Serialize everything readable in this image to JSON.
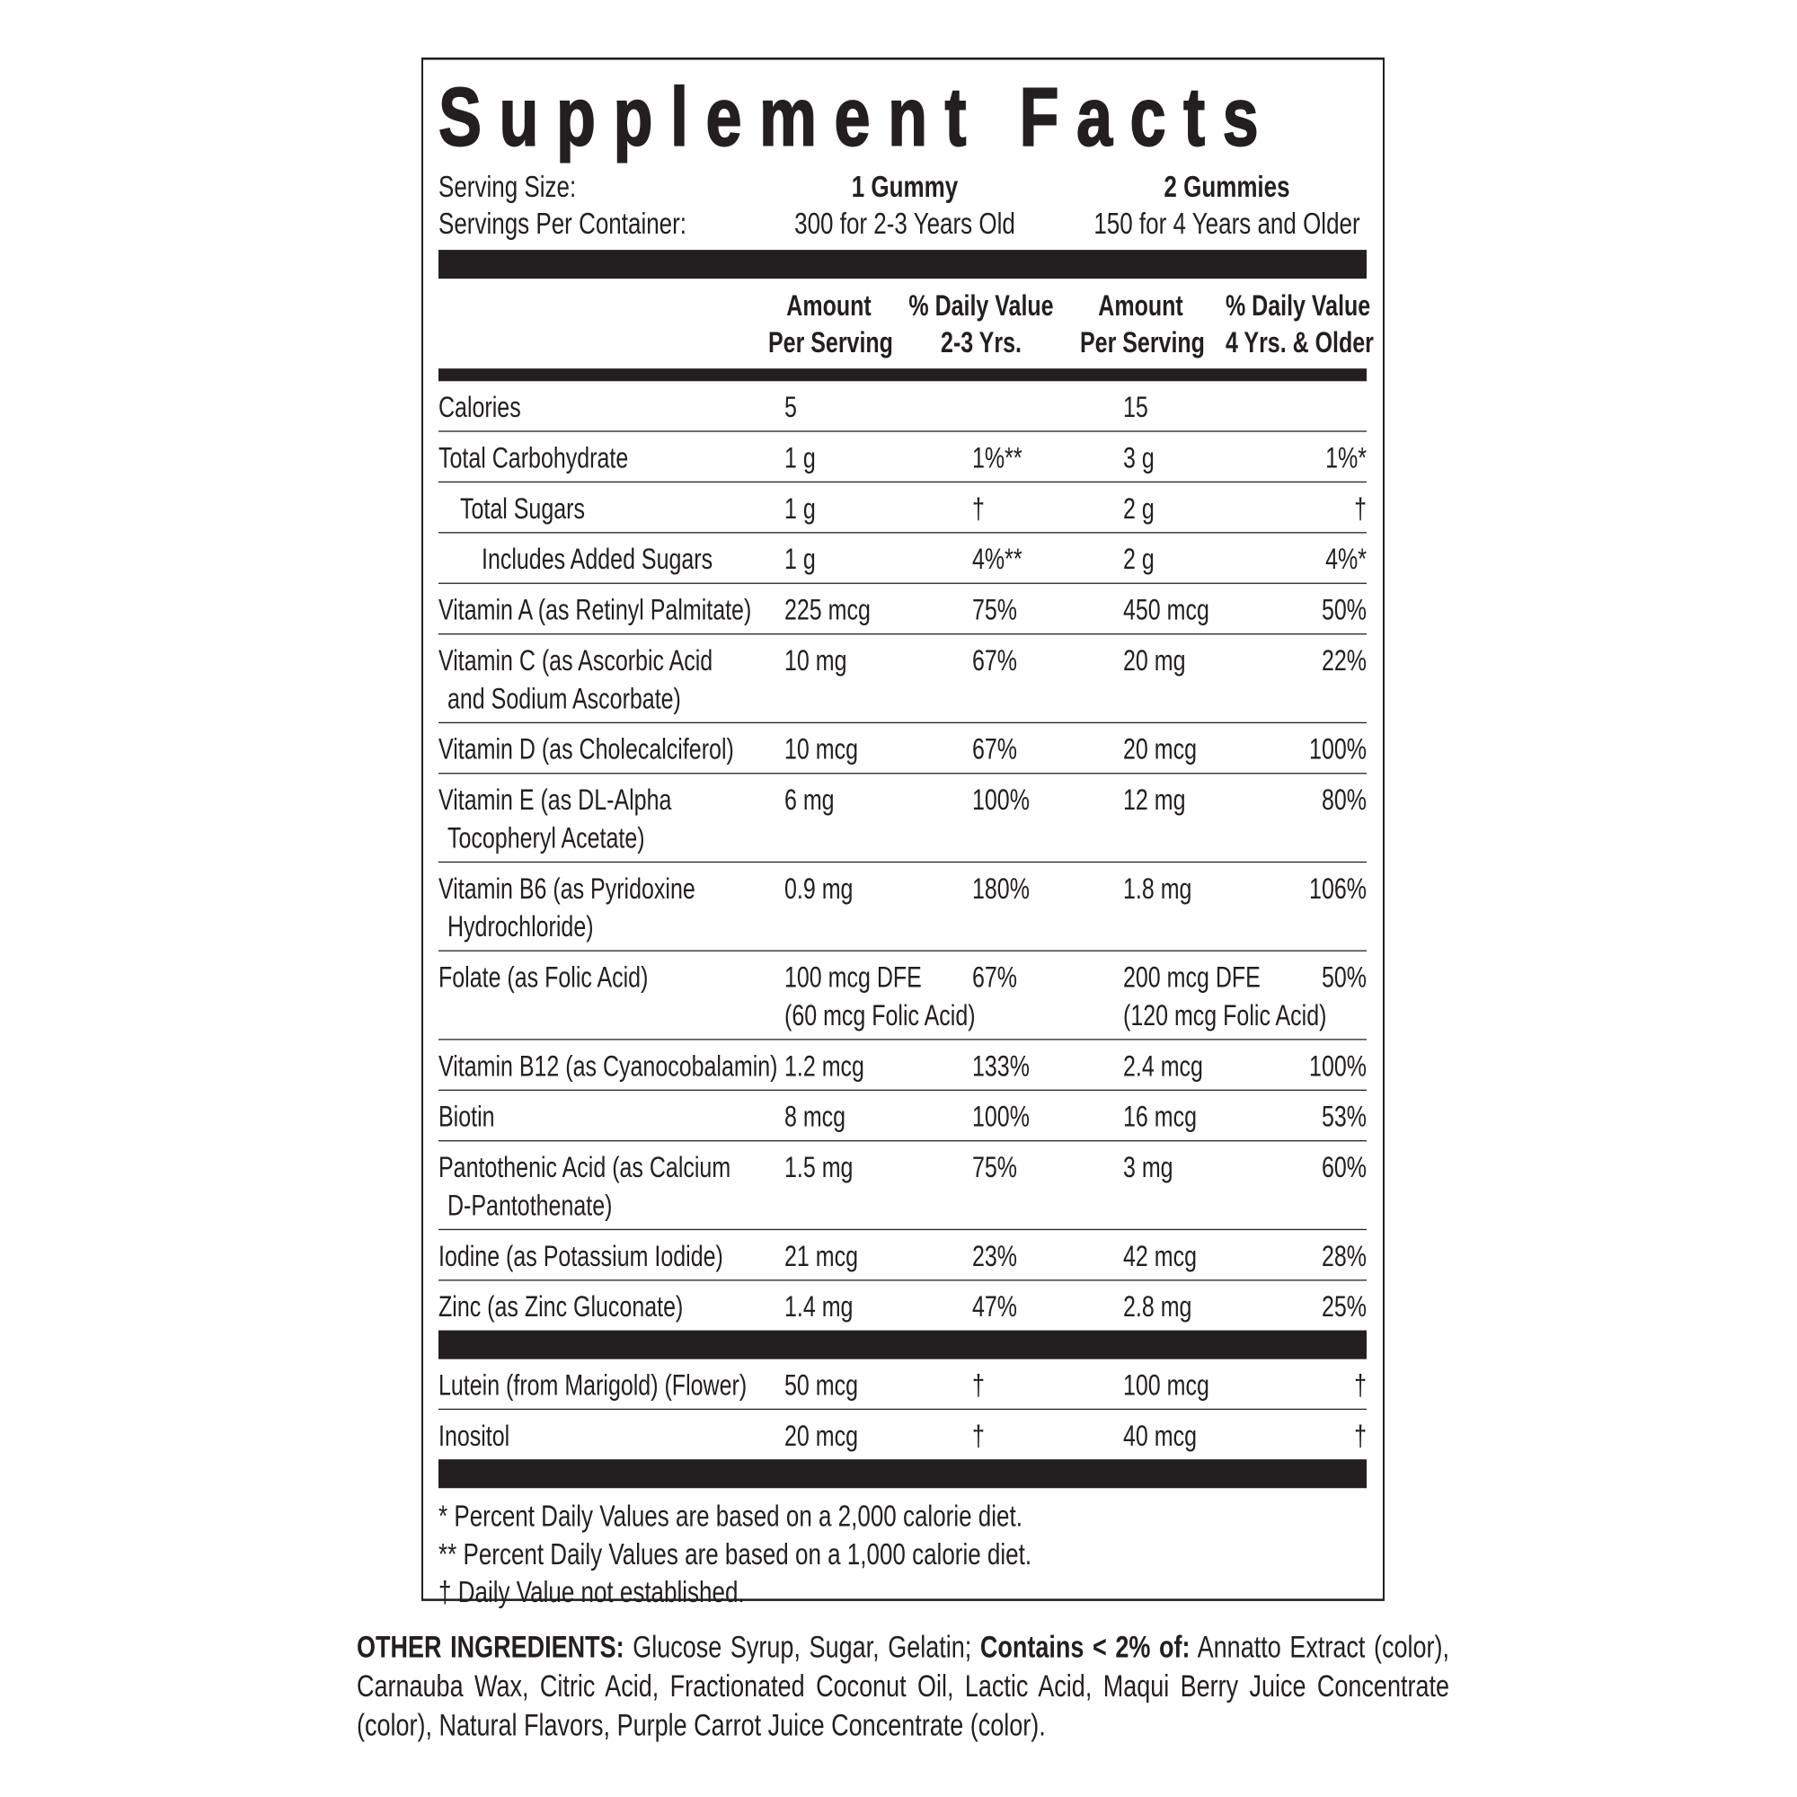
{
  "title": "Supplement Facts",
  "serving": {
    "size_label": "Serving Size:",
    "servings_label": "Servings Per Container:",
    "columns": [
      {
        "size": "1 Gummy",
        "servings": "300 for 2-3 Years Old"
      },
      {
        "size": "2 Gummies",
        "servings": "150 for 4 Years and Older"
      }
    ]
  },
  "headers": [
    "Amount\nPer Serving",
    "% Daily Value\n2-3 Yrs.",
    "Amount\nPer Serving",
    "% Daily Value\n4 Yrs. & Older"
  ],
  "sections": [
    {
      "rows": [
        {
          "name": "Calories",
          "amount_1": "5",
          "amount_2": "15"
        },
        {
          "name": "Total Carbohydrate",
          "amount_1": "1 g",
          "dv_1": "1%**",
          "amount_2": "3 g",
          "dv_2": "1%*",
          "sub": [
            {
              "name": "Total Sugars",
              "amount_1": "1 g",
              "dv_1": "†",
              "amount_2": "2 g",
              "dv_2": "†",
              "sub": [
                {
                  "name": "Includes Added Sugars",
                  "amount_1": "1 g",
                  "dv_1": "4%**",
                  "amount_2": "2 g",
                  "dv_2": "4%*"
                }
              ]
            }
          ]
        },
        {
          "name": "Vitamin A (as Retinyl Palmitate)",
          "amount_1": "225 mcg",
          "dv_1": "75%",
          "amount_2": "450 mcg",
          "dv_2": "50%"
        },
        {
          "name": "Vitamin C (as Ascorbic Acid\nand Sodium Ascorbate)",
          "amount_1": "10 mg",
          "dv_1": "67%",
          "amount_2": "20 mg",
          "dv_2": "22%"
        },
        {
          "name": "Vitamin D (as Cholecalciferol)",
          "amount_1": "10 mcg",
          "dv_1": "67%",
          "amount_2": "20 mcg",
          "dv_2": "100%"
        },
        {
          "name": "Vitamin E (as DL-Alpha\nTocopheryl Acetate)",
          "amount_1": "6 mg",
          "dv_1": "100%",
          "amount_2": "12 mg",
          "dv_2": "80%"
        },
        {
          "name": "Vitamin B6 (as Pyridoxine\nHydrochloride)",
          "amount_1": "0.9 mg",
          "dv_1": "180%",
          "amount_2": "1.8 mg",
          "dv_2": "106%"
        },
        {
          "name": "Folate (as Folic Acid)",
          "amount_1": "100 mcg DFE\n(60 mcg Folic Acid)",
          "dv_1": "67%",
          "amount_2": "200 mcg DFE\n(120 mcg Folic Acid)",
          "dv_2": "50%"
        },
        {
          "name": "Vitamin B12 (as Cyanocobalamin)",
          "amount_1": "1.2 mcg",
          "dv_1": "133%",
          "amount_2": "2.4 mcg",
          "dv_2": "100%"
        },
        {
          "name": "Biotin",
          "amount_1": "8 mcg",
          "dv_1": "100%",
          "amount_2": "16 mcg",
          "dv_2": "53%"
        },
        {
          "name": "Pantothenic Acid (as Calcium\nD-Pantothenate)",
          "amount_1": "1.5 mg",
          "dv_1": "75%",
          "amount_2": "3 mg",
          "dv_2": "60%"
        },
        {
          "name": "Iodine (as Potassium Iodide)",
          "amount_1": "21 mcg",
          "dv_1": "23%",
          "amount_2": "42 mcg",
          "dv_2": "28%"
        },
        {
          "name": "Zinc (as Zinc Gluconate)",
          "amount_1": "1.4 mg",
          "dv_1": "47%",
          "amount_2": "2.8 mg",
          "dv_2": "25%"
        }
      ]
    },
    {
      "rows": [
        {
          "name": "Lutein (from Marigold) (Flower)",
          "amount_1": "50 mcg",
          "dv_1": "†",
          "amount_2": "100 mcg",
          "dv_2": "†"
        },
        {
          "name": "Inositol",
          "amount_1": "20 mcg",
          "dv_1": "†",
          "amount_2": "40 mcg",
          "dv_2": "†"
        }
      ]
    }
  ],
  "footnotes": [
    {
      "symbol": "*",
      "text": "Percent Daily Values are based on a 2,000 calorie diet."
    },
    {
      "symbol": "**",
      "text": "Percent Daily Values are based on a 1,000 calorie diet."
    },
    {
      "symbol": "†",
      "text": "Daily Value not established."
    }
  ],
  "other_ingredients": {
    "label": "OTHER INGREDIENTS:",
    "text": "Glucose Syrup, Sugar, Gelatin;",
    "contains_label": "Contains < 2% of:",
    "contains_text": "Annatto Extract (color), Carnauba Wax, Citric Acid, Fractionated Coconut Oil, Lactic Acid, Maqui Berry Juice Concentrate (color), Natural Flavors, Purple Carrot Juice Concentrate (color)."
  }
}
